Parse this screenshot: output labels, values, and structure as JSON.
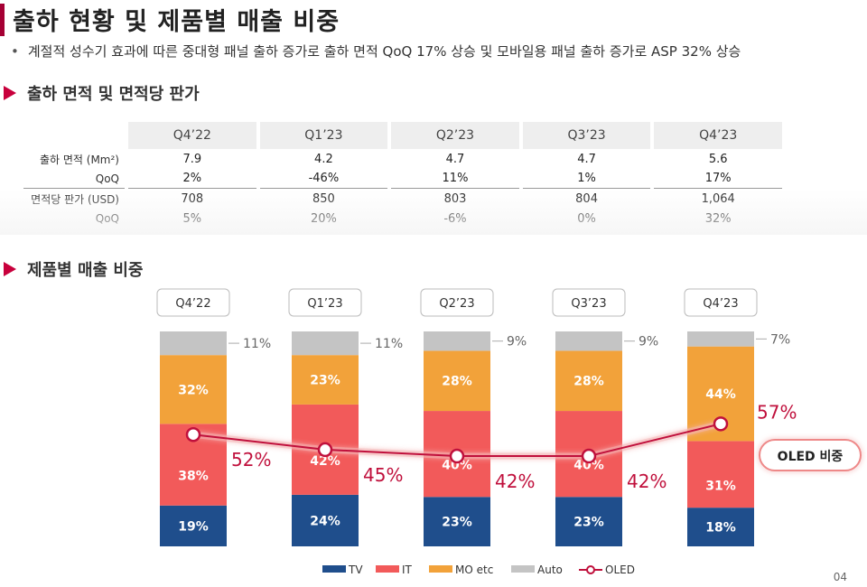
{
  "page": {
    "title": "출하 현황 및 제품별 매출 비중",
    "bullet": "계절적 성수기 효과에 따른 중대형 패널 출하 증가로 출하 면적 QoQ 17% 상승 및 모바일용 패널 출하 증가로 ASP 32% 상승",
    "page_number": "04"
  },
  "section1": {
    "title": "출하 면적 및 면적당 판가"
  },
  "section2": {
    "title": "제품별 매출 비중"
  },
  "table": {
    "headers": [
      "Q4’22",
      "Q1’23",
      "Q2’23",
      "Q3’23",
      "Q4’23"
    ],
    "rows": [
      {
        "label": "출하 면적 (Mm²)",
        "values": [
          "7.9",
          "4.2",
          "4.7",
          "4.7",
          "5.6"
        ]
      },
      {
        "label": "QoQ",
        "values": [
          "2%",
          "-46%",
          "11%",
          "1%",
          "17%"
        ]
      },
      {
        "label": "면적당 판가 (USD)",
        "values": [
          "708",
          "850",
          "803",
          "804",
          "1,064"
        ]
      },
      {
        "label": "QoQ",
        "values": [
          "5%",
          "20%",
          "-6%",
          "0%",
          "32%"
        ]
      }
    ]
  },
  "chart_data": {
    "type": "bar",
    "stacked": true,
    "categories": [
      "Q4’22",
      "Q1’23",
      "Q2’23",
      "Q3’23",
      "Q4’23"
    ],
    "series": [
      {
        "name": "TV",
        "color": "#1f4e8c",
        "values": [
          19,
          24,
          23,
          23,
          18
        ]
      },
      {
        "name": "IT",
        "color": "#f25a5a",
        "values": [
          38,
          42,
          40,
          40,
          31
        ]
      },
      {
        "name": "MO etc",
        "color": "#f2a23a",
        "values": [
          32,
          23,
          28,
          28,
          44
        ]
      },
      {
        "name": "Auto",
        "color": "#c4c4c4",
        "values": [
          11,
          11,
          9,
          9,
          7
        ]
      }
    ],
    "line": {
      "name": "OLED",
      "color": "#c0103c",
      "values": [
        52,
        45,
        42,
        42,
        57
      ]
    },
    "oled_label": "OLED 비중",
    "ylim": [
      0,
      100
    ]
  }
}
